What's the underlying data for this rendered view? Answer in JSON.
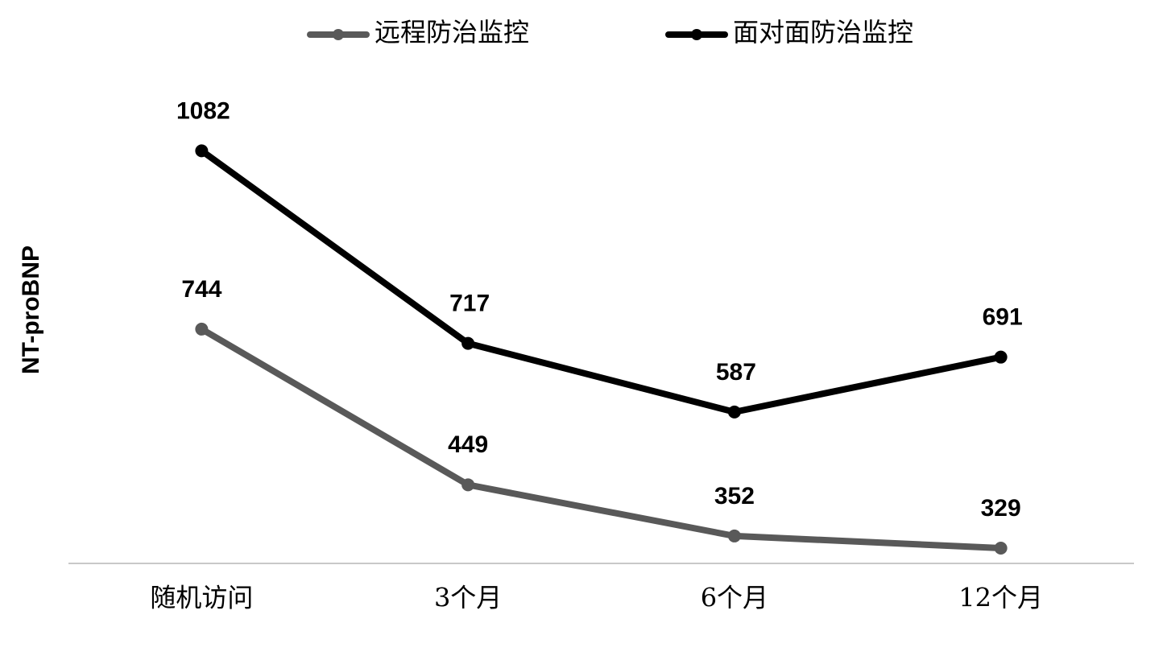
{
  "chart_data": {
    "type": "line",
    "y_label": "NT-proBNP",
    "categories": [
      "随机访问",
      "3个月",
      "6个月",
      "12个月"
    ],
    "series": [
      {
        "name": "远程防治监控",
        "color": "#595959",
        "values": [
          744,
          449,
          352,
          329
        ]
      },
      {
        "name": "面对面防治监控",
        "color": "#000000",
        "values": [
          1082,
          717,
          587,
          691
        ]
      }
    ],
    "ylim": [
      300,
      1200
    ],
    "legend": "top"
  }
}
